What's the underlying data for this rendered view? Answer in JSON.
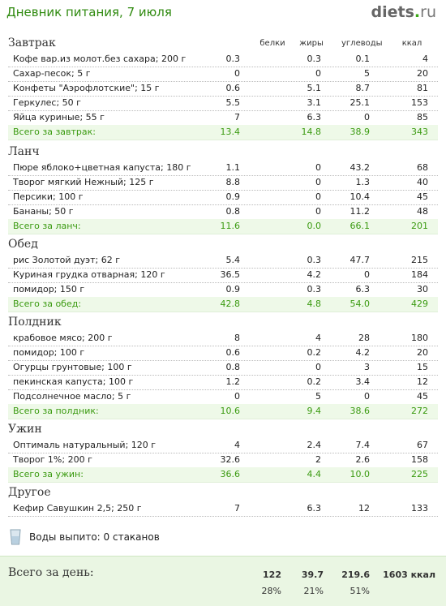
{
  "header": {
    "title": "Дневник питания, 7 июля",
    "logo_main": "diets",
    "logo_dot": ".",
    "logo_tld": "ru"
  },
  "columns": {
    "protein": "белки",
    "fat": "жиры",
    "carbs": "углеводы",
    "kcal": "ккал"
  },
  "sections": [
    {
      "title": "Завтрак",
      "rows": [
        [
          "Кофе вар.из молот.без сахара; 200 г",
          "0.3",
          "0.3",
          "0.1",
          "4"
        ],
        [
          "Сахар-песок; 5 г",
          "0",
          "0",
          "5",
          "20"
        ],
        [
          "Конфеты \"Аэрофлотские\"; 15 г",
          "0.6",
          "5.1",
          "8.7",
          "81"
        ],
        [
          "Геркулес; 50 г",
          "5.5",
          "3.1",
          "25.1",
          "153"
        ],
        [
          "Яйца куриные; 55 г",
          "7",
          "6.3",
          "0",
          "85"
        ]
      ],
      "total": [
        "Всего за завтрак:",
        "13.4",
        "14.8",
        "38.9",
        "343"
      ]
    },
    {
      "title": "Ланч",
      "rows": [
        [
          "Пюре яблоко+цветная капуста; 180 г",
          "1.1",
          "0",
          "43.2",
          "68"
        ],
        [
          "Творог мягкий Нежный; 125 г",
          "8.8",
          "0",
          "1.3",
          "40"
        ],
        [
          "Персики; 100 г",
          "0.9",
          "0",
          "10.4",
          "45"
        ],
        [
          "Бананы; 50 г",
          "0.8",
          "0",
          "11.2",
          "48"
        ]
      ],
      "total": [
        "Всего за ланч:",
        "11.6",
        "0.0",
        "66.1",
        "201"
      ]
    },
    {
      "title": "Обед",
      "rows": [
        [
          "рис Золотой дуэт; 62 г",
          "5.4",
          "0.3",
          "47.7",
          "215"
        ],
        [
          "Куриная грудка отварная; 120 г",
          "36.5",
          "4.2",
          "0",
          "184"
        ],
        [
          "помидор; 150 г",
          "0.9",
          "0.3",
          "6.3",
          "30"
        ]
      ],
      "total": [
        "Всего за обед:",
        "42.8",
        "4.8",
        "54.0",
        "429"
      ]
    },
    {
      "title": "Полдник",
      "rows": [
        [
          "крабовое мясо; 200 г",
          "8",
          "4",
          "28",
          "180"
        ],
        [
          "помидор; 100 г",
          "0.6",
          "0.2",
          "4.2",
          "20"
        ],
        [
          "Огурцы грунтовые; 100 г",
          "0.8",
          "0",
          "3",
          "15"
        ],
        [
          "пекинская капуста; 100 г",
          "1.2",
          "0.2",
          "3.4",
          "12"
        ],
        [
          "Подсолнечное масло; 5 г",
          "0",
          "5",
          "0",
          "45"
        ]
      ],
      "total": [
        "Всего за полдник:",
        "10.6",
        "9.4",
        "38.6",
        "272"
      ]
    },
    {
      "title": "Ужин",
      "rows": [
        [
          "Оптималь натуральный; 120 г",
          "4",
          "2.4",
          "7.4",
          "67"
        ],
        [
          "Творог 1%; 200 г",
          "32.6",
          "2",
          "2.6",
          "158"
        ]
      ],
      "total": [
        "Всего за ужин:",
        "36.6",
        "4.4",
        "10.0",
        "225"
      ]
    },
    {
      "title": "Другое",
      "rows": [
        [
          "Кефир Савушкин 2,5; 250 г",
          "7",
          "6.3",
          "12",
          "133"
        ]
      ],
      "total": null
    }
  ],
  "water": {
    "icon": "water-glass-icon",
    "text": "Воды выпито: 0 стаканов"
  },
  "day": {
    "label": "Всего за день:",
    "protein": "122",
    "fat": "39.7",
    "carbs": "219.6",
    "kcal": "1603 ккал",
    "protein_pct": "28%",
    "fat_pct": "21%",
    "carbs_pct": "51%"
  },
  "colors": {
    "accent": "#2f8a0f",
    "total_text": "#3a9a10",
    "total_bg": "#eef9e8",
    "day_bg": "#eaf6e3"
  }
}
